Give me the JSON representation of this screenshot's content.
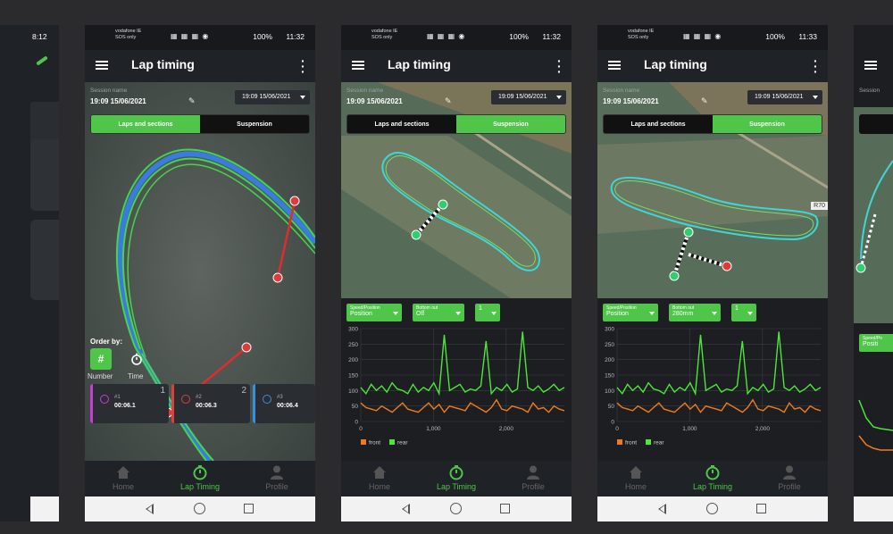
{
  "status": {
    "carrier_line1": "vodafone IE",
    "carrier_line2": "SOS only",
    "icons": "▦ ▦ ▦ ◉",
    "battery": "100%",
    "left_partial_clock": "8:12",
    "times": [
      "11:32",
      "11:32",
      "11:33"
    ]
  },
  "app": {
    "title": "Lap timing",
    "session_label": "Session name",
    "session_value": "19:09 15/06/2021",
    "date_select": "19:09 15/06/2021",
    "tabs": [
      "Laps and sections",
      "Suspension"
    ]
  },
  "nav": {
    "home": "Home",
    "lap_timing": "Lap Timing",
    "profile": "Profile"
  },
  "screen1": {
    "order_by": "Order by:",
    "order_number": "Number",
    "order_time": "Time",
    "order_number_icon": "#",
    "laps": [
      {
        "num": "1",
        "idx": "#1",
        "time": "00:06.1",
        "color": "#c33fd6"
      },
      {
        "num": "2",
        "idx": "#2",
        "time": "00:06.3",
        "color": "#e0403a"
      },
      {
        "num": "3",
        "idx": "#3",
        "time": "00:06.4",
        "color": "#3a8ee0"
      }
    ]
  },
  "screen2": {
    "controls": [
      {
        "label": "Speed/Position",
        "value": "Position"
      },
      {
        "label": "Bottom out",
        "value": "Off"
      },
      {
        "label": "",
        "value": "1"
      }
    ]
  },
  "screen3": {
    "controls": [
      {
        "label": "Speed/Position",
        "value": "Position"
      },
      {
        "label": "Bottom out",
        "value": "280mm"
      },
      {
        "label": "",
        "value": "1"
      }
    ],
    "road_label": "R70"
  },
  "right_partial": {
    "session_label": "Session",
    "control_label": "Speed/Po",
    "control_value": "Positi"
  },
  "chart_data": {
    "type": "line",
    "ylim": [
      0,
      300
    ],
    "xlim": [
      0,
      2800
    ],
    "yticks": [
      "0",
      "50",
      "100",
      "150",
      "200",
      "250",
      "300"
    ],
    "xticks": [
      "0",
      "1,000",
      "2,000"
    ],
    "legend": [
      "front",
      "rear"
    ],
    "legend_placement": "bottom-left",
    "colors": {
      "front": "#f07b1f",
      "rear": "#4ee63a"
    },
    "series": [
      {
        "name": "front",
        "values": [
          60,
          45,
          40,
          35,
          50,
          40,
          30,
          45,
          60,
          40,
          35,
          30,
          45,
          60,
          40,
          55,
          30,
          50,
          45,
          40,
          35,
          60,
          50,
          40,
          30,
          45,
          70,
          40,
          35,
          50,
          45,
          40,
          30,
          60,
          40,
          45,
          30,
          50,
          40,
          35
        ]
      },
      {
        "name": "rear",
        "values": [
          110,
          90,
          120,
          100,
          115,
          95,
          125,
          105,
          100,
          90,
          120,
          95,
          110,
          100,
          125,
          90,
          280,
          100,
          110,
          120,
          95,
          105,
          100,
          115,
          260,
          90,
          110,
          100,
          120,
          95,
          105,
          290,
          110,
          100,
          115,
          95,
          105,
          120,
          100,
          110
        ]
      }
    ]
  },
  "colors": {
    "accent": "#4fc54a",
    "background": "#2b2b2e",
    "panel": "#1c1e22"
  }
}
